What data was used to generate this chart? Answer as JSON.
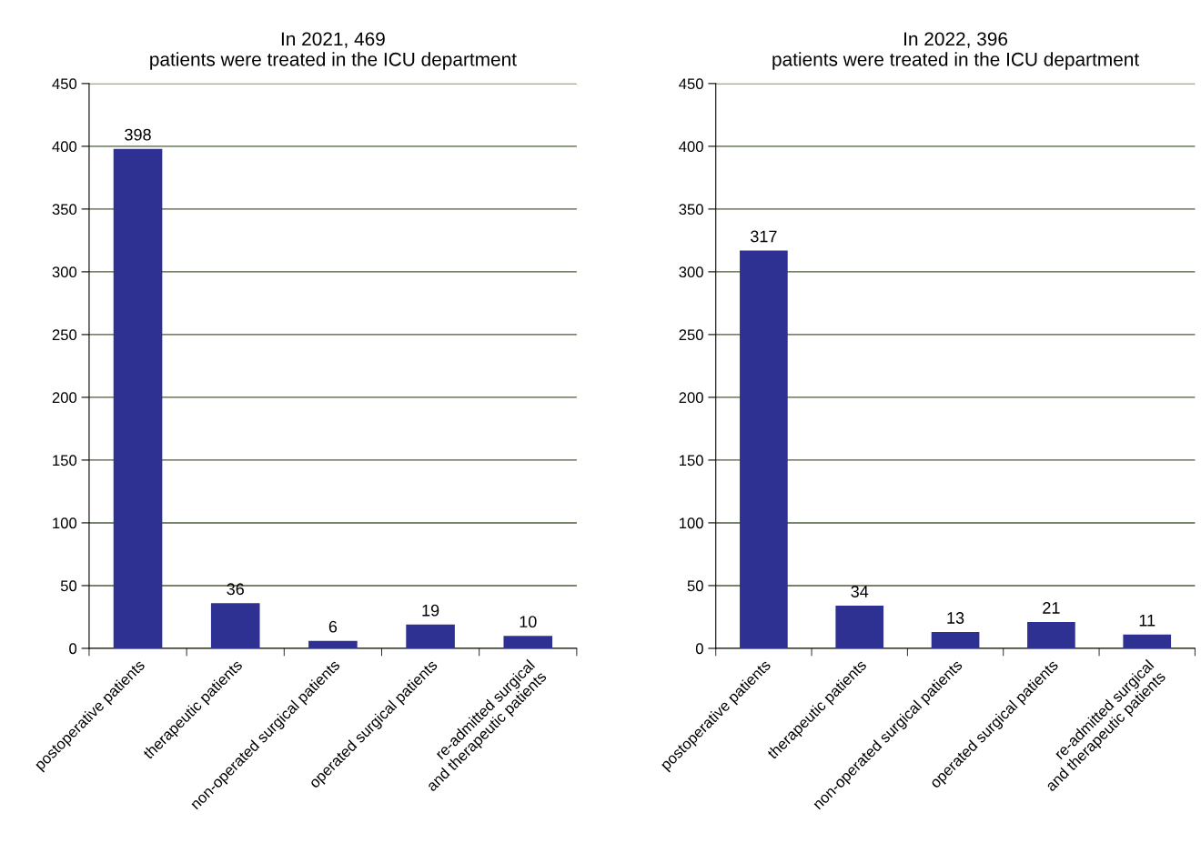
{
  "chart_data": [
    {
      "type": "bar",
      "title": "In 2021, 469\npatients were treated in the ICU department",
      "categories": [
        "postoperative patients",
        "therapeutic patients",
        "non-operated surgical patients",
        "operated surgical patients",
        "re-admitted surgical\nand therapeutic patients"
      ],
      "values": [
        398,
        36,
        6,
        19,
        10
      ],
      "color": "#2e3192",
      "ylim": [
        0,
        450
      ],
      "yticks": [
        0,
        50,
        100,
        150,
        200,
        250,
        300,
        350,
        400,
        450
      ],
      "grid": "y",
      "data_labels": true
    },
    {
      "type": "bar",
      "title": "In 2022, 396\npatients were treated in the ICU department",
      "categories": [
        "postoperative patients",
        "therapeutic patients",
        "non-operated surgical patients",
        "operated surgical patients",
        "re-admitted surgical\nand therapeutic patients"
      ],
      "values": [
        317,
        34,
        13,
        21,
        11
      ],
      "color": "#2e3192",
      "ylim": [
        0,
        450
      ],
      "yticks": [
        0,
        50,
        100,
        150,
        200,
        250,
        300,
        350,
        400,
        450
      ],
      "grid": "y",
      "data_labels": true
    }
  ]
}
